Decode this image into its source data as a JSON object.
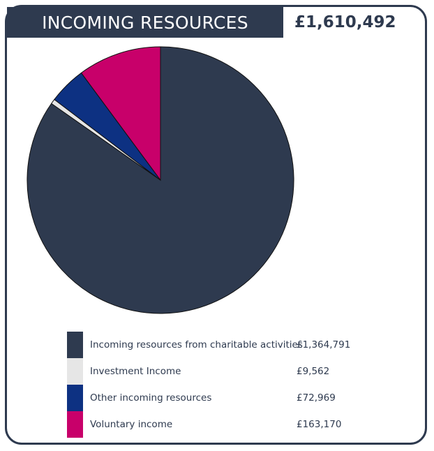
{
  "header": {
    "title": "INCOMING RESOURCES",
    "total": "£1,610,492"
  },
  "colors": {
    "navy": "#2e3a4f",
    "investment": "#e6e6e6",
    "other": "#0d3182",
    "voluntary": "#c8006a"
  },
  "chart_data": {
    "type": "pie",
    "title": "INCOMING RESOURCES",
    "total_label": "£1,610,492",
    "legend_position": "bottom",
    "slices": [
      {
        "name": "Incoming resources from charitable activities",
        "value": 1364791,
        "value_label": "£1,364,791",
        "color": "#2e3a4f"
      },
      {
        "name": "Investment Income",
        "value": 9562,
        "value_label": "£9,562",
        "color": "#e6e6e6"
      },
      {
        "name": "Other incoming resources",
        "value": 72969,
        "value_label": "£72,969",
        "color": "#0d3182"
      },
      {
        "name": "Voluntary income",
        "value": 163170,
        "value_label": "£163,170",
        "color": "#c8006a"
      }
    ]
  }
}
